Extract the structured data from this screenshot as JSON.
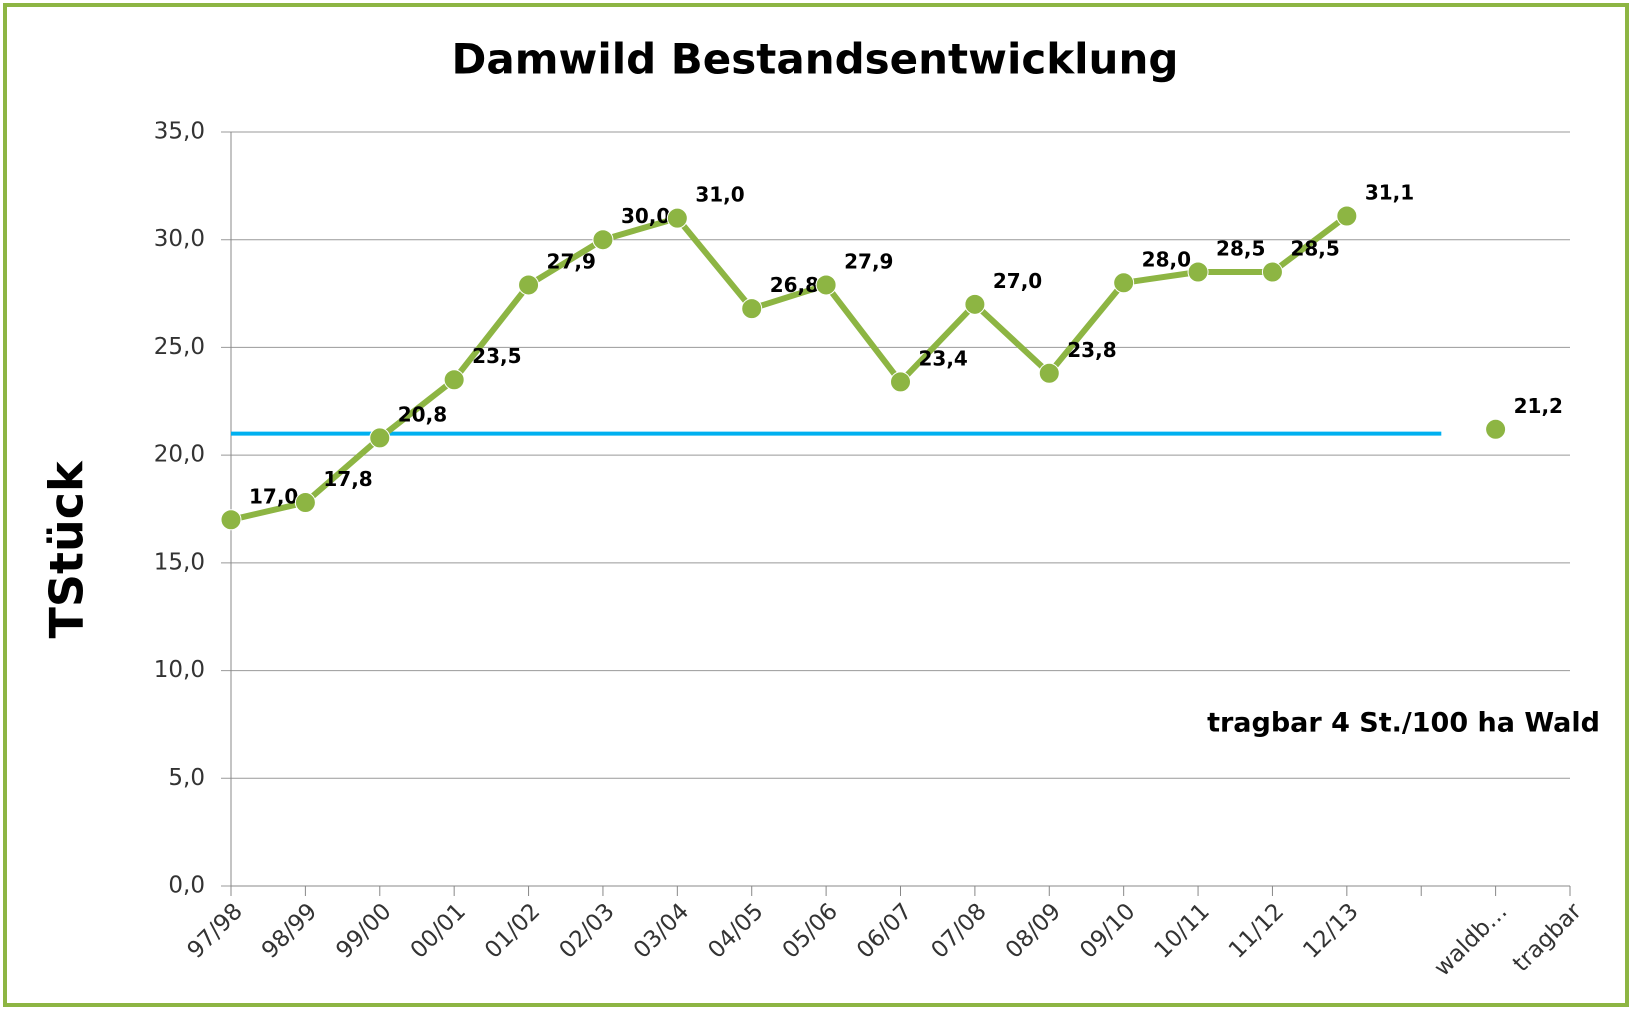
{
  "chart_data": {
    "type": "line",
    "title": "Damwild Bestandsentwicklung",
    "y_label": "TStück",
    "annotation": "tragbar 4 St./100 ha Wald",
    "categories": [
      "97/98",
      "98/99",
      "99/00",
      "00/01",
      "01/02",
      "02/03",
      "03/04",
      "04/05",
      "05/06",
      "06/07",
      "07/08",
      "08/09",
      "09/10",
      "10/11",
      "11/12",
      "12/13",
      null,
      "waldb…",
      "tragbar"
    ],
    "series": [
      {
        "color": "#8db543",
        "values": [
          17.0,
          17.8,
          20.8,
          23.5,
          27.9,
          30.0,
          31.0,
          26.8,
          27.9,
          23.4,
          27.0,
          23.8,
          28.0,
          28.5,
          28.5,
          31.1,
          null,
          null,
          null
        ],
        "value_labels": [
          "17,0",
          "17,8",
          "20,8",
          "23,5",
          "27,9",
          "30,0",
          "31,0",
          "26,8",
          "27,9",
          "23,4",
          "27,0",
          "23,8",
          "28,0",
          "28,5",
          "28,5",
          "31,1",
          null,
          null,
          null
        ]
      },
      {
        "color": "#8db543",
        "values": [
          null,
          null,
          null,
          null,
          null,
          null,
          null,
          null,
          null,
          null,
          null,
          null,
          null,
          null,
          null,
          null,
          null,
          21.2,
          null
        ],
        "value_labels": [
          null,
          null,
          null,
          null,
          null,
          null,
          null,
          null,
          null,
          null,
          null,
          null,
          null,
          null,
          null,
          null,
          null,
          "21,2",
          null
        ]
      }
    ],
    "reference_line": {
      "value": 21.0,
      "color": "#00b0f0"
    },
    "ylim": [
      0,
      35
    ],
    "yticks": [
      {
        "value": 0,
        "label": "0,0"
      },
      {
        "value": 5,
        "label": "5,0"
      },
      {
        "value": 10,
        "label": "10,0"
      },
      {
        "value": 15,
        "label": "15,0"
      },
      {
        "value": 20,
        "label": "20,0"
      },
      {
        "value": 25,
        "label": "25,0"
      },
      {
        "value": 30,
        "label": "30,0"
      },
      {
        "value": 35,
        "label": "35,0"
      }
    ],
    "grid": true
  }
}
